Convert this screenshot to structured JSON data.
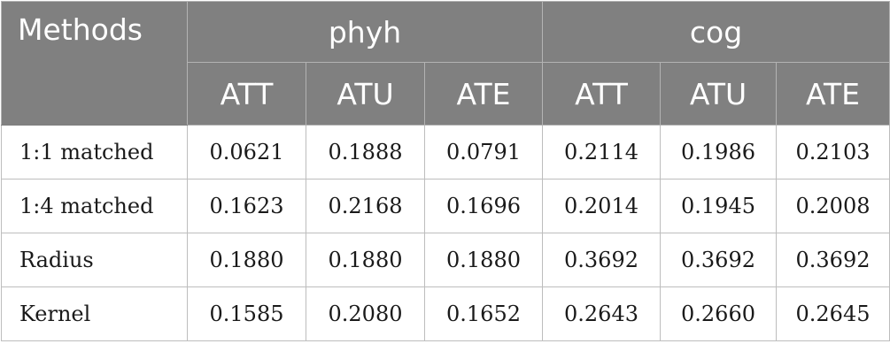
{
  "table": {
    "methods_header": "Methods",
    "groups": [
      {
        "label": "phyh",
        "subcolumns": [
          "ATT",
          "ATU",
          "ATE"
        ]
      },
      {
        "label": "cog",
        "subcolumns": [
          "ATT",
          "ATU",
          "ATE"
        ]
      }
    ],
    "rows": [
      {
        "method": "1:1 matched",
        "values": [
          "0.0621",
          "0.1888",
          "0.0791",
          "0.2114",
          "0.1986",
          "0.2103"
        ]
      },
      {
        "method": "1:4 matched",
        "values": [
          "0.1623",
          "0.2168",
          "0.1696",
          "0.2014",
          "0.1945",
          "0.2008"
        ]
      },
      {
        "method": "Radius",
        "values": [
          "0.1880",
          "0.1880",
          "0.1880",
          "0.3692",
          "0.3692",
          "0.3692"
        ]
      },
      {
        "method": "Kernel",
        "values": [
          "0.1585",
          "0.2080",
          "0.1652",
          "0.2643",
          "0.2660",
          "0.2645"
        ]
      }
    ]
  },
  "colors": {
    "header_background": "#808080",
    "header_text": "#ffffff",
    "body_text": "#1a1a1a",
    "grid_lines": "#bdbdbd"
  }
}
